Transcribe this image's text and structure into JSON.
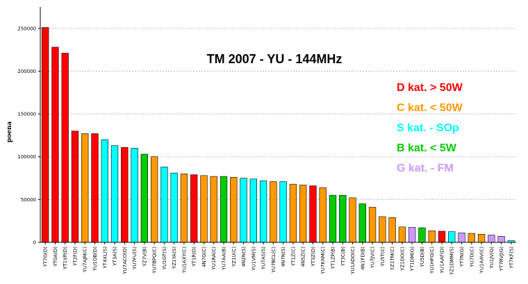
{
  "chart_data": {
    "type": "bar",
    "title": "TM 2007 - YU - 144MHz",
    "ylabel": "poena",
    "xlabel": "",
    "ylim": [
      0,
      275000
    ],
    "yticks": [
      0,
      50000,
      100000,
      150000,
      200000,
      250000
    ],
    "grid": "horizontal-dashed",
    "legend_position": "right",
    "categories_text": {
      "D": "D kat. > 50W",
      "C": "C kat. < 50W",
      "S": "S kat. - SOp",
      "B": "B kat. < 5W",
      "G": "G kat. - FM"
    },
    "category_colors": {
      "D": "#ff0000",
      "C": "#ff9900",
      "S": "#00ffff",
      "B": "#00cc00",
      "G": "#cc99ff"
    },
    "categories": [
      "YT7G(D)",
      "YT0A(D)",
      "YT1VP(D)",
      "YT2F(D)",
      "YU7AJM(C)",
      "YU1OB(D)",
      "YT4XL(S)",
      "YT3A(S)",
      "YU7ACO(D)",
      "YU7FU(S)",
      "YZ7V(B)",
      "YU7BPQ(C)",
      "YU1GT(S)",
      "YZ1YA(S)",
      "YU1AXY(C)",
      "YT1R(D)",
      "4N7G(C)",
      "YU1RA(C)",
      "YU7AA(B)",
      "YZ1U(C)",
      "4N2N(S)",
      "YU1VM(S)",
      "YU7AS(S)",
      "YU7BCL(C)",
      "4N7N(S)",
      "YT1Z(C)",
      "4N5Z(C)",
      "YT3Z(D)",
      "YU7KXM(C)",
      "YT1ZP(B)",
      "YT3C(B)",
      "YU1ADO(C)",
      "4N1FD(B)",
      "YU7JV(C)",
      "YU5T(C)",
      "YZ1TM(C)",
      "YZ1DO(C)",
      "YT1DM(G)",
      "YU5D(B)",
      "YU1HFG(C)",
      "YU1AAF(D)",
      "YZ1DMM(S)",
      "YT7N(G)",
      "YU7D(C)",
      "YU1AAV(C)",
      "YU1JV(G)",
      "YT7RVJ(G)",
      "YT7KF(S)"
    ],
    "series_category": [
      "D",
      "D",
      "D",
      "D",
      "C",
      "D",
      "S",
      "S",
      "D",
      "S",
      "B",
      "C",
      "S",
      "S",
      "C",
      "D",
      "C",
      "C",
      "B",
      "C",
      "S",
      "S",
      "S",
      "C",
      "S",
      "C",
      "C",
      "D",
      "C",
      "B",
      "B",
      "C",
      "B",
      "C",
      "C",
      "C",
      "C",
      "G",
      "B",
      "C",
      "D",
      "S",
      "G",
      "C",
      "C",
      "G",
      "G",
      "S"
    ],
    "values": [
      251000,
      228000,
      221000,
      130000,
      127000,
      127000,
      120000,
      113000,
      111000,
      110000,
      103000,
      100000,
      88000,
      81000,
      80000,
      79000,
      78000,
      77000,
      77000,
      76000,
      75000,
      74000,
      72000,
      71000,
      71000,
      68000,
      67000,
      66000,
      64000,
      55000,
      55000,
      52000,
      45000,
      41000,
      30000,
      29000,
      18000,
      17500,
      17000,
      13500,
      13000,
      12500,
      11000,
      10500,
      9500,
      8500,
      7000,
      2000
    ]
  }
}
